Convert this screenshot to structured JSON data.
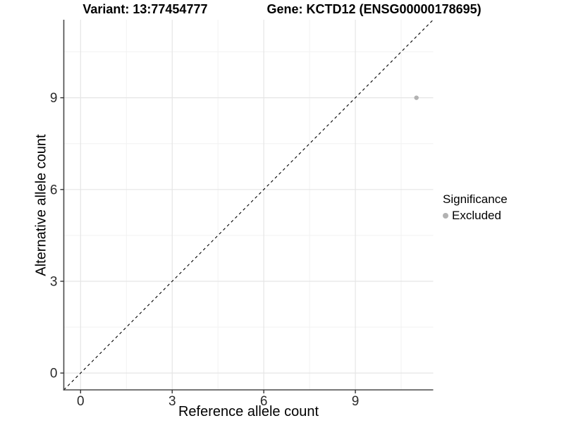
{
  "title": {
    "left": "Variant: 13:77454777",
    "right": "Gene: KCTD12 (ENSG00000178695)"
  },
  "axes": {
    "x_label": "Reference allele count",
    "y_label": "Alternative allele count"
  },
  "legend": {
    "title": "Significance",
    "items": [
      {
        "label": "Excluded",
        "color": "#b2b2b2"
      }
    ]
  },
  "colors": {
    "background": "#ffffff",
    "axis_line": "#4a4a4a",
    "tick_mark": "#333333",
    "tick_label": "#2b2b2b",
    "grid_major": "#e5e5e5",
    "grid_minor": "#f2f2f2",
    "reference_line": "#000000",
    "point": "#b2b2b2"
  },
  "chart_data": {
    "type": "scatter",
    "title": "Variant: 13:77454777    Gene: KCTD12 (ENSG00000178695)",
    "xlabel": "Reference allele count",
    "ylabel": "Alternative allele count",
    "xlim": [
      -0.55,
      11.55
    ],
    "ylim": [
      -0.55,
      11.55
    ],
    "x_major_ticks": [
      0,
      3,
      6,
      9
    ],
    "y_major_ticks": [
      0,
      3,
      6,
      9
    ],
    "x_minor_ticks": [
      1.5,
      4.5,
      7.5,
      10.5
    ],
    "y_minor_ticks": [
      1.5,
      4.5,
      7.5,
      10.5
    ],
    "grid": true,
    "legend_position": "right",
    "reference_line": {
      "kind": "identity",
      "slope": 1,
      "intercept": 0,
      "style": "dashed"
    },
    "series": [
      {
        "name": "Excluded",
        "color": "#b2b2b2",
        "points": [
          {
            "x": 11,
            "y": 9
          }
        ]
      }
    ]
  }
}
